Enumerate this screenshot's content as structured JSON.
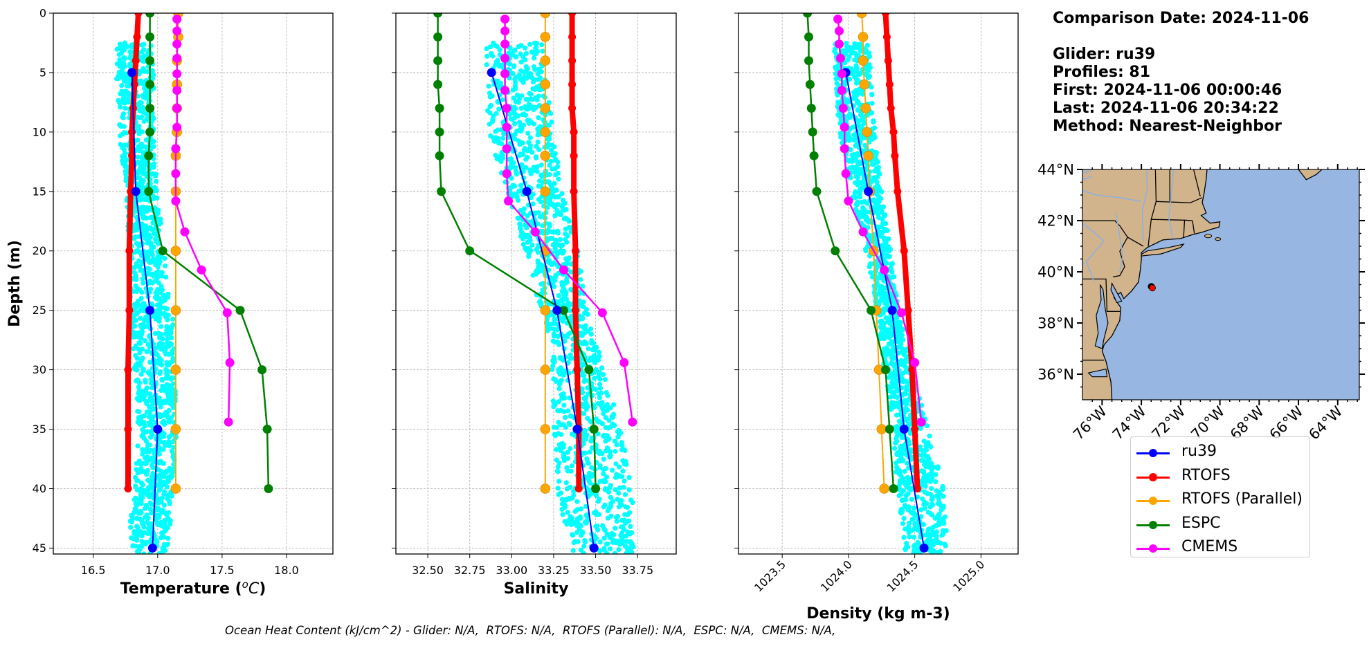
{
  "info": {
    "comparison_date": "Comparison Date: 2024-11-06",
    "glider": "Glider: ru39",
    "profiles": "Profiles: 81",
    "first": "First: 2024-11-06 00:00:46",
    "last": "Last: 2024-11-06 20:34:22",
    "method": "Method: Nearest-Neighbor"
  },
  "footer": "Ocean Heat Content (kJ/cm^2) - Glider: N/A,  RTOFS: N/A,  RTOFS (Parallel): N/A,  ESPC: N/A,  CMEMS: N/A,",
  "legend": [
    {
      "label": "ru39",
      "color": "#0000ff"
    },
    {
      "label": "RTOFS",
      "color": "#ff0000"
    },
    {
      "label": "RTOFS (Parallel)",
      "color": "#ffa500"
    },
    {
      "label": "ESPC",
      "color": "#008000"
    },
    {
      "label": "CMEMS",
      "color": "#ff00ff"
    }
  ],
  "colors": {
    "glider_scatter": "#00ffff",
    "ru39": "#0000ff",
    "rtofs": "#ff0000",
    "rtofs_parallel": "#ffa500",
    "espc": "#008000",
    "cmems": "#ff00ff",
    "land": "#d2b48c",
    "ocean": "#97b6e1",
    "grid": "#b0b0b0"
  },
  "chart_data": [
    {
      "type": "line",
      "title": "",
      "xlabel": "Temperature (°C)",
      "ylabel": "Depth (m)",
      "xlim": [
        16.19,
        18.36
      ],
      "ylim": [
        45.5,
        0
      ],
      "y_inverted": true,
      "grid": true,
      "xticks": [
        16.5,
        17.0,
        17.5,
        18.0
      ],
      "xtick_labels": [
        "16.5",
        "17.0",
        "17.5",
        "18.0"
      ],
      "yticks": [
        0,
        5,
        10,
        15,
        20,
        25,
        30,
        35,
        40,
        45
      ],
      "ytick_labels": [
        "0",
        "5",
        "10",
        "15",
        "20",
        "25",
        "30",
        "35",
        "40",
        "45"
      ],
      "scatter_envelope": {
        "name": "glider profiles",
        "depth": [
          2.5,
          5,
          10,
          15,
          20,
          25,
          30,
          35,
          40,
          45.5
        ],
        "x_min": [
          16.68,
          16.68,
          16.7,
          16.75,
          16.78,
          16.78,
          16.82,
          16.85,
          16.82,
          16.75
        ],
        "x_max": [
          16.95,
          16.97,
          16.97,
          17.0,
          17.05,
          17.12,
          17.13,
          17.15,
          17.12,
          17.08
        ]
      },
      "series": [
        {
          "name": "ru39",
          "depth": [
            5,
            15,
            25,
            35,
            45
          ],
          "values": [
            16.8,
            16.83,
            16.94,
            17.0,
            16.96
          ]
        },
        {
          "name": "RTOFS",
          "depth": [
            0,
            2,
            4,
            6,
            8,
            10,
            12,
            15,
            20,
            25,
            30,
            35,
            40
          ],
          "values": [
            16.85,
            16.84,
            16.83,
            16.82,
            16.81,
            16.8,
            16.8,
            16.79,
            16.78,
            16.78,
            16.77,
            16.77,
            16.77
          ]
        },
        {
          "name": "RTOFS (Parallel)",
          "depth": [
            0,
            2,
            4,
            6,
            8,
            10,
            12,
            15,
            20,
            25,
            30,
            35,
            40
          ],
          "values": [
            17.16,
            17.16,
            17.15,
            17.15,
            17.15,
            17.15,
            17.14,
            17.14,
            17.14,
            17.14,
            17.14,
            17.14,
            17.14
          ]
        },
        {
          "name": "ESPC",
          "depth": [
            0,
            2,
            4,
            6,
            8,
            10,
            12,
            15,
            20,
            25,
            30,
            35,
            40
          ],
          "values": [
            16.94,
            16.94,
            16.94,
            16.94,
            16.94,
            16.94,
            16.93,
            16.93,
            17.04,
            17.64,
            17.81,
            17.85,
            17.86
          ]
        },
        {
          "name": "CMEMS",
          "depth": [
            0.5,
            1.5,
            2.6,
            3.8,
            5.1,
            6.5,
            8.0,
            9.6,
            11.4,
            13.5,
            15.8,
            18.4,
            21.6,
            25.2,
            29.4,
            34.4
          ],
          "values": [
            17.15,
            17.15,
            17.15,
            17.15,
            17.15,
            17.15,
            17.15,
            17.15,
            17.14,
            17.14,
            17.14,
            17.21,
            17.34,
            17.54,
            17.56,
            17.55
          ]
        }
      ]
    },
    {
      "type": "line",
      "title": "",
      "xlabel": "Salinity",
      "ylabel": "",
      "xlim": [
        32.31,
        33.98
      ],
      "ylim": [
        45.5,
        0
      ],
      "y_inverted": true,
      "grid": true,
      "xticks": [
        32.5,
        32.75,
        33.0,
        33.25,
        33.5,
        33.75
      ],
      "xtick_labels": [
        "32.50",
        "32.75",
        "33.00",
        "33.25",
        "33.50",
        "33.75"
      ],
      "yticks": [
        0,
        5,
        10,
        15,
        20,
        25,
        30,
        35,
        40,
        45
      ],
      "scatter_envelope": {
        "name": "glider profiles",
        "depth": [
          2.5,
          5,
          10,
          15,
          20,
          25,
          30,
          35,
          40,
          45.5
        ],
        "x_min": [
          32.84,
          32.85,
          32.86,
          32.97,
          33.08,
          33.17,
          33.24,
          33.25,
          33.27,
          33.35
        ],
        "x_max": [
          33.18,
          33.2,
          33.25,
          33.3,
          33.4,
          33.45,
          33.55,
          33.65,
          33.72,
          33.73
        ]
      },
      "series": [
        {
          "name": "ru39",
          "depth": [
            5,
            15,
            25,
            35,
            45
          ],
          "values": [
            32.88,
            33.09,
            33.27,
            33.39,
            33.49
          ]
        },
        {
          "name": "RTOFS",
          "depth": [
            0,
            2,
            4,
            6,
            8,
            10,
            12,
            15,
            20,
            25,
            30,
            35,
            40
          ],
          "values": [
            33.36,
            33.36,
            33.36,
            33.36,
            33.36,
            33.37,
            33.37,
            33.37,
            33.38,
            33.38,
            33.39,
            33.4,
            33.4
          ]
        },
        {
          "name": "RTOFS (Parallel)",
          "depth": [
            0,
            2,
            4,
            6,
            8,
            10,
            12,
            15,
            20,
            25,
            30,
            35,
            40
          ],
          "values": [
            33.2,
            33.2,
            33.2,
            33.2,
            33.2,
            33.2,
            33.2,
            33.2,
            33.2,
            33.2,
            33.2,
            33.2,
            33.2
          ]
        },
        {
          "name": "ESPC",
          "depth": [
            0,
            2,
            4,
            6,
            8,
            10,
            12,
            15,
            20,
            25,
            30,
            35,
            40
          ],
          "values": [
            32.56,
            32.56,
            32.56,
            32.56,
            32.57,
            32.57,
            32.57,
            32.58,
            32.75,
            33.31,
            33.46,
            33.49,
            33.5
          ]
        },
        {
          "name": "CMEMS",
          "depth": [
            0.5,
            1.5,
            2.6,
            3.8,
            5.1,
            6.5,
            8.0,
            9.6,
            11.4,
            13.5,
            15.8,
            18.4,
            21.6,
            25.2,
            29.4,
            34.4
          ],
          "values": [
            32.96,
            32.96,
            32.96,
            32.96,
            32.96,
            32.96,
            32.97,
            32.97,
            32.97,
            32.97,
            32.98,
            33.14,
            33.31,
            33.54,
            33.67,
            33.72
          ]
        }
      ]
    },
    {
      "type": "line",
      "title": "",
      "xlabel": "Density (kg m-3)",
      "ylabel": "",
      "xlim": [
        1023.17,
        1025.28
      ],
      "ylim": [
        45.5,
        0
      ],
      "y_inverted": true,
      "grid": true,
      "xticks": [
        1023.5,
        1024.0,
        1024.5,
        1025.0
      ],
      "xtick_labels": [
        "1023.5",
        "1024.0",
        "1024.5",
        "1025.0"
      ],
      "yticks": [
        0,
        5,
        10,
        15,
        20,
        25,
        30,
        35,
        40,
        45
      ],
      "scatter_envelope": {
        "name": "glider profiles",
        "depth": [
          2.5,
          5,
          10,
          15,
          20,
          25,
          30,
          35,
          40,
          45.5
        ],
        "x_min": [
          1023.89,
          1023.9,
          1023.93,
          1024.02,
          1024.13,
          1024.21,
          1024.27,
          1024.33,
          1024.37,
          1024.43
        ],
        "x_max": [
          1024.16,
          1024.17,
          1024.2,
          1024.25,
          1024.32,
          1024.38,
          1024.48,
          1024.6,
          1024.72,
          1024.75
        ]
      },
      "series": [
        {
          "name": "ru39",
          "depth": [
            5,
            15,
            25,
            35,
            45
          ],
          "values": [
            1023.98,
            1024.15,
            1024.33,
            1024.42,
            1024.57
          ]
        },
        {
          "name": "RTOFS",
          "depth": [
            0,
            2,
            4,
            6,
            8,
            10,
            12,
            15,
            20,
            25,
            30,
            35,
            40
          ],
          "values": [
            1024.28,
            1024.29,
            1024.3,
            1024.31,
            1024.32,
            1024.34,
            1024.35,
            1024.37,
            1024.42,
            1024.45,
            1024.48,
            1024.5,
            1024.52
          ]
        },
        {
          "name": "RTOFS (Parallel)",
          "depth": [
            0,
            2,
            4,
            6,
            8,
            10,
            12,
            15,
            20,
            25,
            30,
            35,
            40
          ],
          "values": [
            1024.1,
            1024.11,
            1024.11,
            1024.12,
            1024.13,
            1024.14,
            1024.15,
            1024.16,
            1024.19,
            1024.21,
            1024.23,
            1024.25,
            1024.27
          ]
        },
        {
          "name": "ESPC",
          "depth": [
            0,
            2,
            4,
            6,
            8,
            10,
            12,
            15,
            20,
            25,
            30,
            35,
            40
          ],
          "values": [
            1023.69,
            1023.7,
            1023.7,
            1023.71,
            1023.72,
            1023.73,
            1023.74,
            1023.76,
            1023.9,
            1024.17,
            1024.28,
            1024.31,
            1024.34
          ]
        },
        {
          "name": "CMEMS",
          "depth": [
            0.5,
            1.5,
            2.6,
            3.8,
            5.1,
            6.5,
            8.0,
            9.6,
            11.4,
            13.5,
            15.8,
            18.4,
            21.6,
            25.2,
            29.4,
            34.4
          ],
          "values": [
            1023.92,
            1023.93,
            1023.93,
            1023.94,
            1023.95,
            1023.95,
            1023.96,
            1023.97,
            1023.97,
            1023.98,
            1024.0,
            1024.11,
            1024.27,
            1024.4,
            1024.5,
            1024.55
          ]
        }
      ]
    },
    {
      "type": "scatter",
      "title": "",
      "xlabel": "",
      "ylabel": "",
      "xlim": [
        -77.0,
        -62.9
      ],
      "ylim": [
        35.0,
        44.0
      ],
      "xticks": [
        -76,
        -74,
        -72,
        -70,
        -68,
        -66,
        -64
      ],
      "xtick_labels": [
        "76°W",
        "74°W",
        "72°W",
        "70°W",
        "68°W",
        "66°W",
        "64°W"
      ],
      "yticks": [
        36,
        38,
        40,
        42,
        44
      ],
      "ytick_labels": [
        "36°N",
        "38°N",
        "40°N",
        "42°N",
        "44°N"
      ],
      "points": [
        {
          "name": "ru39 location",
          "lon": -73.44,
          "lat": 39.37
        }
      ]
    }
  ]
}
